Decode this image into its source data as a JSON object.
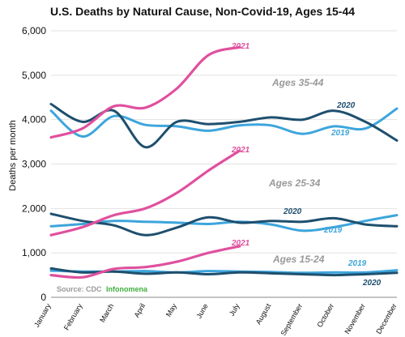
{
  "chart_data": {
    "type": "line",
    "title": "U.S. Deaths by Natural Cause, Non-Covid-19, Ages 15-44",
    "xlabel": "",
    "ylabel": "Deaths per month",
    "ylim": [
      0,
      6000
    ],
    "yticks": [
      "0",
      "1,000",
      "2,000",
      "3,000",
      "4,000",
      "5,000",
      "6,000"
    ],
    "categories": [
      "January",
      "February",
      "March",
      "April",
      "May",
      "June",
      "July",
      "August",
      "September",
      "October",
      "November",
      "December"
    ],
    "grid": true,
    "groups": [
      {
        "label": "Ages 35-44",
        "series": [
          {
            "name": "2021",
            "color": "#e0509e",
            "values": [
              3600,
              3800,
              4300,
              4270,
              4700,
              5450,
              5630
            ]
          },
          {
            "name": "2020",
            "color": "#1e4f6e",
            "values": [
              4350,
              3950,
              4200,
              3380,
              3950,
              3900,
              3950,
              4050,
              4000,
              4200,
              3950,
              3530
            ]
          },
          {
            "name": "2019",
            "color": "#3da5dc",
            "values": [
              4200,
              3620,
              4080,
              3880,
              3850,
              3750,
              3870,
              3870,
              3680,
              3850,
              3800,
              4250
            ]
          }
        ]
      },
      {
        "label": "Ages 25-34",
        "series": [
          {
            "name": "2021",
            "color": "#e0509e",
            "values": [
              1400,
              1580,
              1850,
              2000,
              2350,
              2850,
              3300
            ]
          },
          {
            "name": "2020",
            "color": "#1e4f6e",
            "values": [
              1880,
              1720,
              1620,
              1400,
              1570,
              1800,
              1680,
              1720,
              1700,
              1780,
              1640,
              1600
            ]
          },
          {
            "name": "2019",
            "color": "#3da5dc",
            "values": [
              1600,
              1650,
              1720,
              1700,
              1680,
              1650,
              1700,
              1640,
              1500,
              1580,
              1720,
              1850
            ]
          }
        ]
      },
      {
        "label": "Ages 15-24",
        "series": [
          {
            "name": "2021",
            "color": "#e0509e",
            "values": [
              500,
              450,
              640,
              680,
              800,
              1000,
              1150
            ]
          },
          {
            "name": "2020",
            "color": "#1e4f6e",
            "values": [
              650,
              560,
              580,
              530,
              560,
              520,
              560,
              540,
              520,
              500,
              520,
              550
            ]
          },
          {
            "name": "2019",
            "color": "#3da5dc",
            "values": [
              600,
              580,
              580,
              590,
              560,
              590,
              580,
              570,
              550,
              560,
              560,
              610
            ]
          }
        ]
      }
    ],
    "source": "Source: CDC",
    "brand": "Infonomena"
  }
}
